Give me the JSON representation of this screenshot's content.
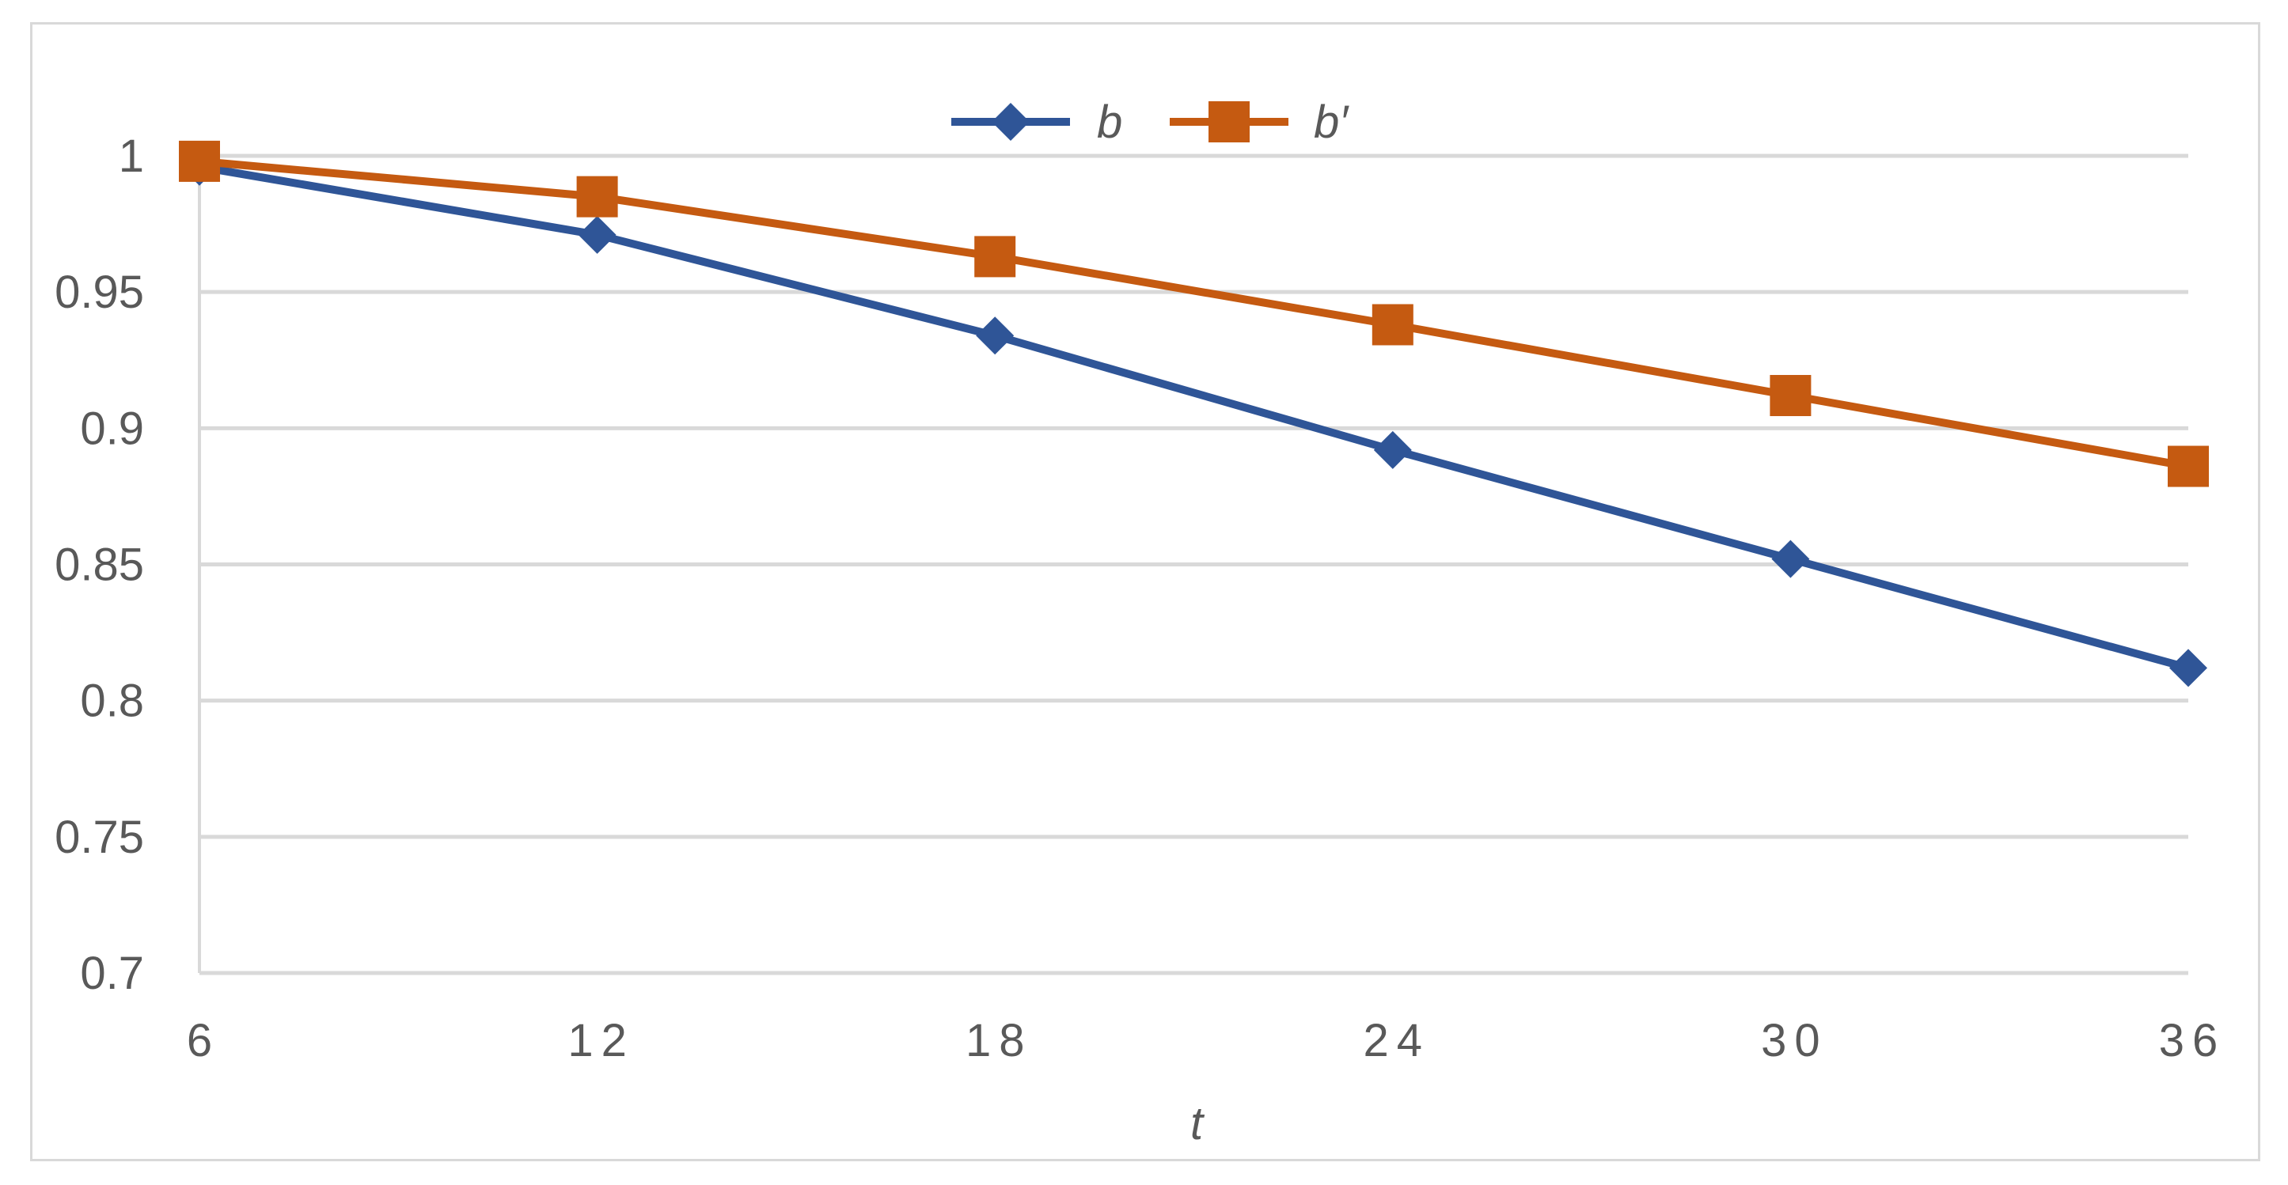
{
  "chart_data": {
    "type": "line",
    "title": "",
    "xlabel": "t",
    "ylabel": "",
    "x": [
      6,
      12,
      18,
      24,
      30,
      36
    ],
    "x_tick_labels": [
      "6",
      "12",
      "18",
      "24",
      "30",
      "36"
    ],
    "y_tick_labels": [
      "0.7",
      "0.75",
      "0.8",
      "0.85",
      "0.9",
      "0.95",
      "1"
    ],
    "y_ticks": [
      0.7,
      0.75,
      0.8,
      0.85,
      0.9,
      0.95,
      1.0
    ],
    "ylim": [
      0.7,
      1.0
    ],
    "grid": "horizontal",
    "legend_position": "top-center",
    "series": [
      {
        "name": "b",
        "color": "#2f5597",
        "marker": "diamond",
        "values": [
          0.996,
          0.971,
          0.934,
          0.892,
          0.852,
          0.812
        ]
      },
      {
        "name": "b′",
        "color": "#c55a11",
        "marker": "square",
        "values": [
          0.998,
          0.985,
          0.963,
          0.938,
          0.912,
          0.886
        ]
      }
    ]
  }
}
